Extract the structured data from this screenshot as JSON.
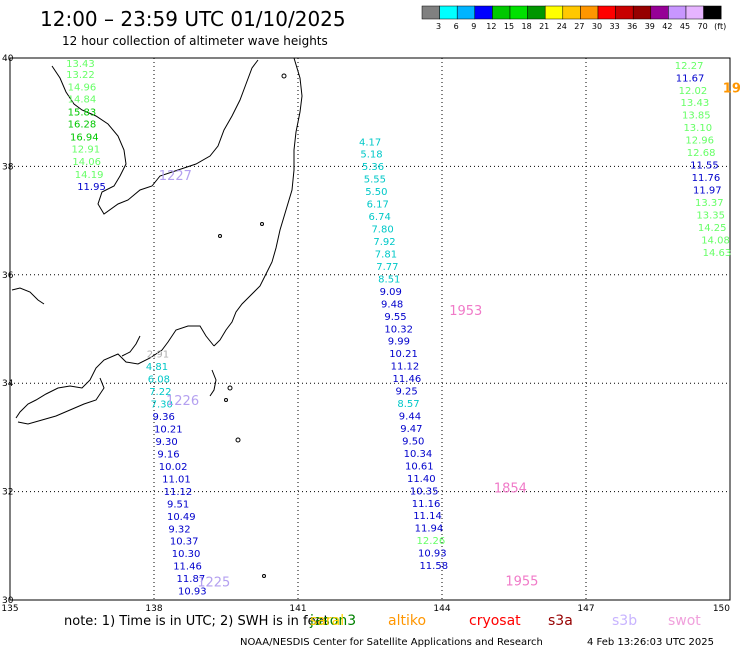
{
  "header": {
    "title": "12:00 – 23:59 UTC 01/10/2025",
    "subtitle": "12 hour collection of altimeter wave heights"
  },
  "colorbar": {
    "swatches": [
      "#808080",
      "#00ffff",
      "#00b4ff",
      "#0000ff",
      "#00c800",
      "#00e100",
      "#009600",
      "#ffff00",
      "#ffc800",
      "#ff9600",
      "#ff0000",
      "#c80000",
      "#960000",
      "#960096",
      "#c896ff",
      "#e6b4ff",
      "#000000"
    ],
    "labels": [
      "3",
      "6",
      "9",
      "12",
      "15",
      "18",
      "21",
      "24",
      "27",
      "30",
      "33",
      "36",
      "39",
      "42",
      "45",
      "70",
      "(ft)"
    ]
  },
  "map": {
    "lon_range": [
      135,
      150
    ],
    "lat_range": [
      30,
      40
    ],
    "x_ticks": [
      "135",
      "138",
      "141",
      "144",
      "147",
      "150"
    ],
    "y_ticks": [
      "40",
      "38",
      "36",
      "34",
      "32",
      "30"
    ],
    "grid": "dotted"
  },
  "passes": [
    {
      "label": "1227",
      "color": "#b4a0f0",
      "lon": 138.1,
      "lat": 37.75
    },
    {
      "label": "1953",
      "color": "#f07ac8",
      "lon": 144.15,
      "lat": 35.26
    },
    {
      "label": "1226",
      "color": "#b4a0f0",
      "lon": 138.25,
      "lat": 33.6
    },
    {
      "label": "1854",
      "color": "#f07ac8",
      "lon": 145.08,
      "lat": 31.98
    },
    {
      "label": "1225",
      "color": "#b4a0f0",
      "lon": 138.9,
      "lat": 30.25
    },
    {
      "label": "1955",
      "color": "#f07ac8",
      "lon": 145.32,
      "lat": 30.27
    },
    {
      "label": "19",
      "color": "#ff9600",
      "lon": 149.85,
      "lat": 39.36
    }
  ],
  "tracks": [
    {
      "name": "track-a",
      "points": [
        {
          "v": "13.43",
          "c": "#66ff66",
          "lon": 136.17,
          "lat": 39.83
        },
        {
          "v": "13.22",
          "c": "#66ff66",
          "lon": 136.17,
          "lat": 39.63
        },
        {
          "v": "14.96",
          "c": "#66ff66",
          "lon": 136.2,
          "lat": 39.4
        },
        {
          "v": "14.84",
          "c": "#66ff66",
          "lon": 136.2,
          "lat": 39.18
        },
        {
          "v": "15.83",
          "c": "#00c800",
          "lon": 136.2,
          "lat": 38.94
        },
        {
          "v": "16.28",
          "c": "#00c800",
          "lon": 136.2,
          "lat": 38.72
        },
        {
          "v": "16.94",
          "c": "#00c800",
          "lon": 136.25,
          "lat": 38.48
        },
        {
          "v": "12.91",
          "c": "#66ff66",
          "lon": 136.28,
          "lat": 38.26
        },
        {
          "v": "14.06",
          "c": "#66ff66",
          "lon": 136.3,
          "lat": 38.03
        },
        {
          "v": "14.19",
          "c": "#66ff66",
          "lon": 136.35,
          "lat": 37.79
        },
        {
          "v": "11.95",
          "c": "#0000cc",
          "lon": 136.4,
          "lat": 37.56
        }
      ]
    },
    {
      "name": "track-b",
      "points": [
        {
          "v": "2.91",
          "c": "#b0b0b0",
          "lon": 137.85,
          "lat": 34.47
        },
        {
          "v": "4.81",
          "c": "#00c8c8",
          "lon": 137.83,
          "lat": 34.24
        },
        {
          "v": "6.08",
          "c": "#00c8c8",
          "lon": 137.87,
          "lat": 34.01
        },
        {
          "v": "7.22",
          "c": "#00c8c8",
          "lon": 137.9,
          "lat": 33.78
        },
        {
          "v": "7.30",
          "c": "#00c8c8",
          "lon": 137.93,
          "lat": 33.55
        },
        {
          "v": "9.36",
          "c": "#0000cc",
          "lon": 137.97,
          "lat": 33.32
        },
        {
          "v": "10.21",
          "c": "#0000cc",
          "lon": 138.0,
          "lat": 33.09
        },
        {
          "v": "9.30",
          "c": "#0000cc",
          "lon": 138.03,
          "lat": 32.86
        },
        {
          "v": "9.16",
          "c": "#0000cc",
          "lon": 138.07,
          "lat": 32.63
        },
        {
          "v": "10.02",
          "c": "#0000cc",
          "lon": 138.1,
          "lat": 32.4
        },
        {
          "v": "11.01",
          "c": "#0000cc",
          "lon": 138.17,
          "lat": 32.17
        },
        {
          "v": "11.12",
          "c": "#0000cc",
          "lon": 138.2,
          "lat": 31.94
        },
        {
          "v": "9.51",
          "c": "#0000cc",
          "lon": 138.27,
          "lat": 31.71
        },
        {
          "v": "10.49",
          "c": "#0000cc",
          "lon": 138.27,
          "lat": 31.48
        },
        {
          "v": "9.32",
          "c": "#0000cc",
          "lon": 138.3,
          "lat": 31.25
        },
        {
          "v": "10.37",
          "c": "#0000cc",
          "lon": 138.33,
          "lat": 31.02
        },
        {
          "v": "10.30",
          "c": "#0000cc",
          "lon": 138.37,
          "lat": 30.79
        },
        {
          "v": "11.46",
          "c": "#0000cc",
          "lon": 138.4,
          "lat": 30.56
        },
        {
          "v": "11.87",
          "c": "#0000cc",
          "lon": 138.47,
          "lat": 30.33
        },
        {
          "v": "10.93",
          "c": "#0000cc",
          "lon": 138.5,
          "lat": 30.1
        }
      ]
    },
    {
      "name": "track-c",
      "points": [
        {
          "v": "4.17",
          "c": "#00c8c8",
          "lon": 142.27,
          "lat": 38.39
        },
        {
          "v": "5.18",
          "c": "#00c8c8",
          "lon": 142.3,
          "lat": 38.16
        },
        {
          "v": "5.36",
          "c": "#00c8c8",
          "lon": 142.33,
          "lat": 37.93
        },
        {
          "v": "5.55",
          "c": "#00c8c8",
          "lon": 142.37,
          "lat": 37.7
        },
        {
          "v": "5.50",
          "c": "#00c8c8",
          "lon": 142.4,
          "lat": 37.47
        },
        {
          "v": "6.17",
          "c": "#00c8c8",
          "lon": 142.43,
          "lat": 37.24
        },
        {
          "v": "6.74",
          "c": "#00c8c8",
          "lon": 142.47,
          "lat": 37.01
        },
        {
          "v": "7.80",
          "c": "#00c8c8",
          "lon": 142.53,
          "lat": 36.78
        },
        {
          "v": "7.92",
          "c": "#00c8c8",
          "lon": 142.57,
          "lat": 36.55
        },
        {
          "v": "7.81",
          "c": "#00c8c8",
          "lon": 142.6,
          "lat": 36.32
        },
        {
          "v": "7.77",
          "c": "#00c8c8",
          "lon": 142.63,
          "lat": 36.09
        },
        {
          "v": "8.51",
          "c": "#00c8c8",
          "lon": 142.67,
          "lat": 35.86
        },
        {
          "v": "9.09",
          "c": "#0000cc",
          "lon": 142.7,
          "lat": 35.63
        },
        {
          "v": "9.48",
          "c": "#0000cc",
          "lon": 142.73,
          "lat": 35.4
        },
        {
          "v": "9.55",
          "c": "#0000cc",
          "lon": 142.8,
          "lat": 35.17
        },
        {
          "v": "10.32",
          "c": "#0000cc",
          "lon": 142.8,
          "lat": 34.94
        },
        {
          "v": "9.99",
          "c": "#0000cc",
          "lon": 142.87,
          "lat": 34.71
        },
        {
          "v": "10.21",
          "c": "#0000cc",
          "lon": 142.9,
          "lat": 34.48
        },
        {
          "v": "11.12",
          "c": "#0000cc",
          "lon": 142.93,
          "lat": 34.25
        },
        {
          "v": "11.46",
          "c": "#0000cc",
          "lon": 142.97,
          "lat": 34.02
        },
        {
          "v": "9.25",
          "c": "#0000cc",
          "lon": 143.03,
          "lat": 33.79
        },
        {
          "v": "8.57",
          "c": "#00c8c8",
          "lon": 143.07,
          "lat": 33.56
        },
        {
          "v": "9.44",
          "c": "#0000cc",
          "lon": 143.1,
          "lat": 33.33
        },
        {
          "v": "9.47",
          "c": "#0000cc",
          "lon": 143.13,
          "lat": 33.1
        },
        {
          "v": "9.50",
          "c": "#0000cc",
          "lon": 143.17,
          "lat": 32.87
        },
        {
          "v": "10.34",
          "c": "#0000cc",
          "lon": 143.2,
          "lat": 32.64
        },
        {
          "v": "10.61",
          "c": "#0000cc",
          "lon": 143.23,
          "lat": 32.41
        },
        {
          "v": "11.40",
          "c": "#0000cc",
          "lon": 143.27,
          "lat": 32.18
        },
        {
          "v": "10.35",
          "c": "#0000cc",
          "lon": 143.33,
          "lat": 31.95
        },
        {
          "v": "11.16",
          "c": "#0000cc",
          "lon": 143.37,
          "lat": 31.72
        },
        {
          "v": "11.14",
          "c": "#0000cc",
          "lon": 143.4,
          "lat": 31.49
        },
        {
          "v": "11.94",
          "c": "#0000cc",
          "lon": 143.43,
          "lat": 31.26
        },
        {
          "v": "12.26",
          "c": "#66ff66",
          "lon": 143.47,
          "lat": 31.03
        },
        {
          "v": "10.93",
          "c": "#0000cc",
          "lon": 143.5,
          "lat": 30.8
        },
        {
          "v": "11.58",
          "c": "#0000cc",
          "lon": 143.53,
          "lat": 30.57
        }
      ]
    },
    {
      "name": "track-d",
      "points": [
        {
          "v": "12.27",
          "c": "#66ff66",
          "lon": 148.85,
          "lat": 39.8
        },
        {
          "v": "11.67",
          "c": "#0000cc",
          "lon": 148.87,
          "lat": 39.57
        },
        {
          "v": "12.02",
          "c": "#66ff66",
          "lon": 148.93,
          "lat": 39.34
        },
        {
          "v": "13.43",
          "c": "#66ff66",
          "lon": 148.97,
          "lat": 39.11
        },
        {
          "v": "13.85",
          "c": "#66ff66",
          "lon": 149.0,
          "lat": 38.88
        },
        {
          "v": "13.10",
          "c": "#66ff66",
          "lon": 149.03,
          "lat": 38.65
        },
        {
          "v": "12.96",
          "c": "#66ff66",
          "lon": 149.07,
          "lat": 38.42
        },
        {
          "v": "12.68",
          "c": "#66ff66",
          "lon": 149.1,
          "lat": 38.19
        },
        {
          "v": "11.55",
          "c": "#0000cc",
          "lon": 149.17,
          "lat": 37.96
        },
        {
          "v": "11.76",
          "c": "#0000cc",
          "lon": 149.2,
          "lat": 37.73
        },
        {
          "v": "11.97",
          "c": "#0000cc",
          "lon": 149.23,
          "lat": 37.5
        },
        {
          "v": "13.37",
          "c": "#66ff66",
          "lon": 149.27,
          "lat": 37.27
        },
        {
          "v": "13.35",
          "c": "#66ff66",
          "lon": 149.3,
          "lat": 37.04
        },
        {
          "v": "14.25",
          "c": "#66ff66",
          "lon": 149.33,
          "lat": 36.81
        },
        {
          "v": "14.08",
          "c": "#66ff66",
          "lon": 149.4,
          "lat": 36.58
        },
        {
          "v": "14.63",
          "c": "#66ff66",
          "lon": 149.43,
          "lat": 36.35
        }
      ]
    }
  ],
  "footer": {
    "note": "note:  1) Time is in UTC;  2) SWH is in feet",
    "satellites": [
      {
        "name": "jason3",
        "color": "#008000"
      },
      {
        "name": "saral",
        "color": "#ffd200"
      },
      {
        "name": "altiko",
        "color": "#ff9600"
      },
      {
        "name": "cryosat",
        "color": "#ff0000"
      },
      {
        "name": "s3a",
        "color": "#960000"
      },
      {
        "name": "s3b",
        "color": "#c8b4ff"
      },
      {
        "name": "swot",
        "color": "#f0a0dc"
      }
    ],
    "credit": "NOAA/NESDIS Center for Satellite Applications and Research",
    "timestamp": "4 Feb 13:26:03 UTC 2025"
  }
}
